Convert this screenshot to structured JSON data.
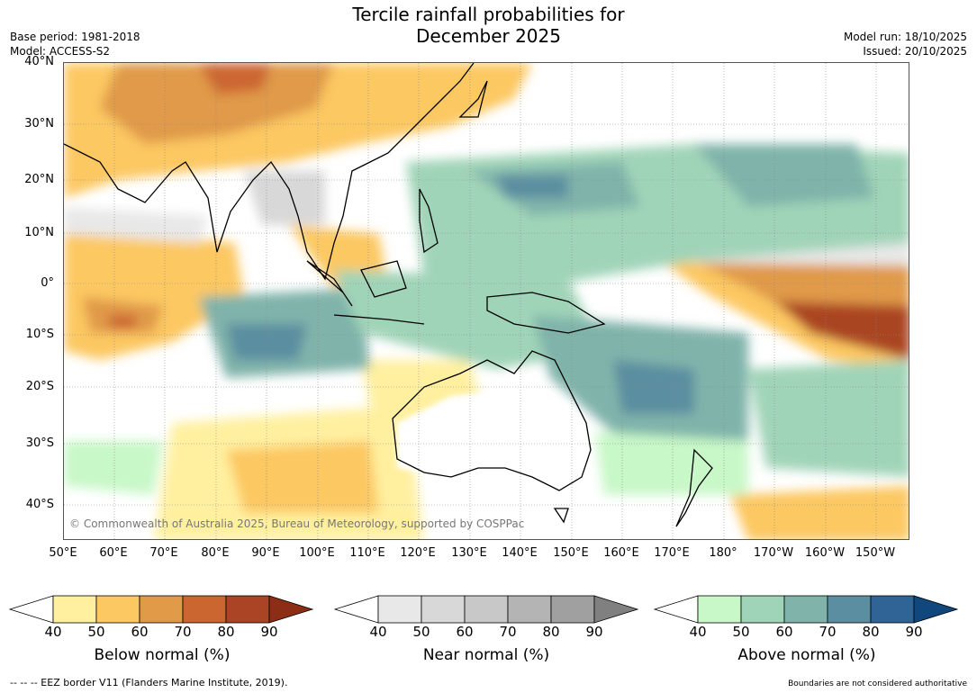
{
  "title_line1": "Tercile rainfall probabilities for",
  "title_line2": "December 2025",
  "meta_left": {
    "base_period": "Base period: 1981-2018",
    "model": "Model: ACCESS-S2"
  },
  "meta_right": {
    "model_run": "Model run: 18/10/2025",
    "issued": "Issued: 20/10/2025"
  },
  "copyright": "© Commonwealth of Australia 2025, Bureau of Meteorology, supported by COSPPac",
  "lat_ticks": [
    "40°N",
    "30°N",
    "20°N",
    "10°N",
    "0°",
    "10°S",
    "20°S",
    "30°S",
    "40°S"
  ],
  "lon_ticks": [
    "50°E",
    "60°E",
    "70°E",
    "80°E",
    "90°E",
    "100°E",
    "110°E",
    "120°E",
    "130°E",
    "140°E",
    "150°E",
    "160°E",
    "170°E",
    "180°",
    "170°W",
    "160°W",
    "150°W"
  ],
  "colorbars": [
    {
      "label": "Below normal (%)",
      "ticks": [
        "40",
        "50",
        "60",
        "70",
        "80",
        "90"
      ],
      "colors": [
        "#ffffff",
        "#fff0a0",
        "#fcc862",
        "#e09a48",
        "#cc6630",
        "#aa4424",
        "#8c2e16"
      ]
    },
    {
      "label": "Near normal (%)",
      "ticks": [
        "40",
        "50",
        "60",
        "70",
        "80",
        "90"
      ],
      "colors": [
        "#ffffff",
        "#e8e8e8",
        "#d8d8d8",
        "#c8c8c8",
        "#b4b4b4",
        "#a0a0a0",
        "#808080"
      ]
    },
    {
      "label": "Above normal (%)",
      "ticks": [
        "40",
        "50",
        "60",
        "70",
        "80",
        "90"
      ],
      "colors": [
        "#ffffff",
        "#c8f8c8",
        "#a0d4b8",
        "#80b4aa",
        "#5a8ea0",
        "#306496",
        "#10487e"
      ]
    }
  ],
  "footer_left": "--  --  -- EEZ border V11 (Flanders Marine Institute, 2019).",
  "footer_right": "Boundaries are not considered authoritative"
}
